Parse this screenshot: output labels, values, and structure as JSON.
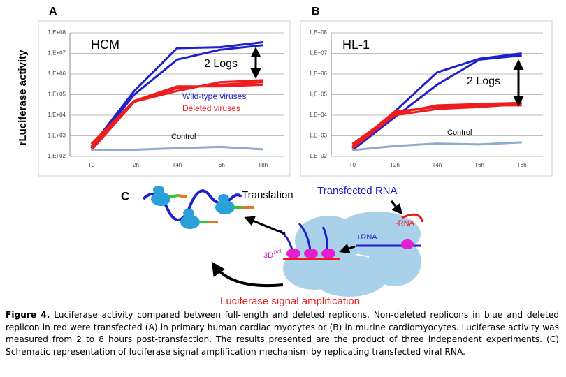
{
  "chart_data": [
    {
      "type": "line",
      "panel": "A",
      "title": "HCM",
      "ylabel": "rLuciferase activity",
      "log": true,
      "grid": true,
      "categories": [
        "T0",
        "T2h",
        "T4h",
        "T6h",
        "T8h"
      ],
      "ylim": [
        100,
        100000000
      ],
      "yticks": [
        {
          "value": 100,
          "label": "1,E+02"
        },
        {
          "value": 1000,
          "label": "1,E+03"
        },
        {
          "value": 10000,
          "label": "1,E+04"
        },
        {
          "value": 100000,
          "label": "1,E+05"
        },
        {
          "value": 1000000,
          "label": "1,E+06"
        },
        {
          "value": 10000000,
          "label": "1,E+07"
        },
        {
          "value": 100000000,
          "label": "1,E+08"
        }
      ],
      "series": [
        {
          "color": "#1f1fcc",
          "values": [
            300,
            150000,
            18000000,
            20000000,
            35000000
          ]
        },
        {
          "color": "#1f1fcc",
          "values": [
            250,
            100000,
            5000000,
            15000000,
            25000000
          ]
        },
        {
          "color": "#ee1c1c",
          "values": [
            400,
            50000,
            200000,
            300000,
            400000
          ]
        },
        {
          "color": "#ee1c1c",
          "values": [
            300,
            50000,
            250000,
            250000,
            300000
          ]
        },
        {
          "color": "#ee1c1c",
          "values": [
            200,
            45000,
            150000,
            400000,
            500000
          ]
        },
        {
          "color": "#8eaacc",
          "values": [
            200,
            210,
            250,
            290,
            220
          ]
        }
      ],
      "annotations": [
        "2 Logs",
        "Wild-type viruses",
        "Deleted viruses",
        "Control"
      ]
    },
    {
      "type": "line",
      "panel": "B",
      "title": "HL-1",
      "log": true,
      "grid": true,
      "categories": [
        "T0",
        "T2h",
        "T4h",
        "T6h",
        "T8h"
      ],
      "ylim": [
        100,
        100000000
      ],
      "yticks": [
        {
          "value": 100,
          "label": "1,E+02"
        },
        {
          "value": 1000,
          "label": "1,E+03"
        },
        {
          "value": 10000,
          "label": "1,E+04"
        },
        {
          "value": 100000,
          "label": "1,E+05"
        },
        {
          "value": 1000000,
          "label": "1,E+06"
        },
        {
          "value": 10000000,
          "label": "1,E+07"
        },
        {
          "value": 100000000,
          "label": "1,E+08"
        }
      ],
      "series": [
        {
          "color": "#1f1fcc",
          "values": [
            250,
            15000,
            1200000,
            5500000,
            10000000
          ]
        },
        {
          "color": "#1f1fcc",
          "values": [
            200,
            8000,
            300000,
            5000000,
            8000000
          ]
        },
        {
          "color": "#ee1c1c",
          "values": [
            400,
            12000,
            30000,
            35000,
            40000
          ]
        },
        {
          "color": "#ee1c1c",
          "values": [
            300,
            15000,
            25000,
            30000,
            30000
          ]
        },
        {
          "color": "#ee1c1c",
          "values": [
            250,
            10000,
            20000,
            25000,
            35000
          ]
        },
        {
          "color": "#8eaacc",
          "values": [
            200,
            320,
            420,
            380,
            480
          ]
        }
      ],
      "annotations": [
        "2 Logs",
        "Control"
      ]
    }
  ],
  "diagram": {
    "label": "C",
    "translation": "Translation",
    "transfected_rna": "Transfected RNA",
    "minus_rna": "-RNA",
    "plus_rna": "+RNA",
    "polymerase": "3D",
    "polymerase_sup": "pol",
    "amplification": "Luciferase signal amplification"
  },
  "caption": {
    "label": "Figure 4.",
    "text": "Luciferase activity compared between full-length and deleted replicons. Non-deleted replicons in blue and deleted replicon in red were transfected (A) in primary human cardiac myocytes or (B) in murine cardiomyocytes. Luciferase activity was measured from 2 to 8 hours post-transfection. The results presented are the product of three independent experiments. (C) Schematic representation of luciferase signal amplification mechanism by replicating transfected viral RNA."
  }
}
